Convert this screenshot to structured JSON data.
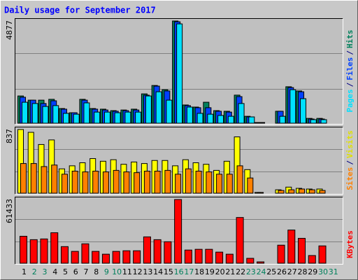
{
  "chart_data": {
    "type": "bar",
    "title": "Daily usage for September 2017",
    "categories": [
      "1",
      "2",
      "3",
      "4",
      "5",
      "6",
      "7",
      "8",
      "9",
      "10",
      "11",
      "12",
      "13",
      "14",
      "15",
      "16",
      "17",
      "18",
      "19",
      "20",
      "21",
      "22",
      "23",
      "24",
      "25",
      "26",
      "27",
      "28",
      "29",
      "30",
      "31"
    ],
    "category_colors": [
      "#000000",
      "#00805c",
      "#00805c",
      "#000000",
      "#000000",
      "#000000",
      "#000000",
      "#000000",
      "#00805c",
      "#00805c",
      "#000000",
      "#000000",
      "#000000",
      "#000000",
      "#000000",
      "#00805c",
      "#00805c",
      "#000000",
      "#000000",
      "#000000",
      "#000000",
      "#000000",
      "#00805c",
      "#00805c",
      "#000000",
      "#000000",
      "#000000",
      "#000000",
      "#000000",
      "#00805c",
      "#00805c"
    ],
    "legend_separator": "/",
    "grid": true,
    "panels": [
      {
        "ylim": [
          0,
          4877
        ],
        "yticks": [
          4877
        ],
        "series": [
          {
            "name": "Hits",
            "color": "#00805c",
            "values": [
              1300,
              1100,
              1100,
              1140,
              700,
              500,
              1140,
              700,
              670,
              600,
              630,
              670,
              1400,
              1800,
              1600,
              4877,
              870,
              770,
              1000,
              600,
              570,
              1340,
              330,
              33,
              0,
              570,
              1740,
              1540,
              230,
              230,
              0
            ]
          },
          {
            "name": "Files",
            "color": "#0040ff",
            "values": [
              1240,
              1100,
              940,
              1070,
              670,
              500,
              1100,
              670,
              630,
              570,
              600,
              630,
              1340,
              1770,
              1540,
              4840,
              840,
              740,
              740,
              570,
              530,
              1270,
              300,
              33,
              0,
              570,
              1700,
              1500,
              200,
              200,
              0
            ]
          },
          {
            "name": "Pages",
            "color": "#00e0ff",
            "values": [
              1000,
              940,
              800,
              840,
              470,
              430,
              970,
              530,
              530,
              500,
              530,
              530,
              1300,
              1500,
              1100,
              4740,
              770,
              470,
              430,
              370,
              330,
              940,
              300,
              33,
              0,
              330,
              1600,
              1170,
              170,
              170,
              0
            ]
          }
        ]
      },
      {
        "ylim": [
          0,
          837
        ],
        "yticks": [
          837
        ],
        "series": [
          {
            "name": "Visits",
            "color": "#ffff00",
            "values": [
              837,
              800,
              640,
              700,
              320,
              360,
              400,
              455,
              420,
              440,
              380,
              410,
              390,
              430,
              430,
              360,
              440,
              400,
              380,
              300,
              420,
              740,
              310,
              10,
              0,
              45,
              80,
              64,
              55,
              55,
              0
            ]
          },
          {
            "name": "Sites",
            "color": "#ff8000",
            "values": [
              390,
              390,
              350,
              370,
              250,
              290,
              280,
              290,
              280,
              300,
              280,
              270,
              290,
              290,
              300,
              250,
              320,
              290,
              280,
              250,
              250,
              360,
              200,
              10,
              0,
              36,
              45,
              55,
              45,
              36,
              0
            ]
          }
        ]
      },
      {
        "ylim": [
          0,
          61433
        ],
        "yticks": [
          61433
        ],
        "series": [
          {
            "name": "KBytes",
            "color": "#ff0000",
            "values": [
              26000,
              22700,
              23400,
              29400,
              16000,
              11400,
              18700,
              11400,
              8700,
              11400,
              12000,
              12000,
              25400,
              22700,
              20700,
              61433,
              12700,
              13400,
              13400,
              10700,
              8700,
              44100,
              4700,
              1300,
              0,
              17400,
              32000,
              24000,
              7400,
              16700,
              0
            ]
          }
        ]
      }
    ]
  }
}
